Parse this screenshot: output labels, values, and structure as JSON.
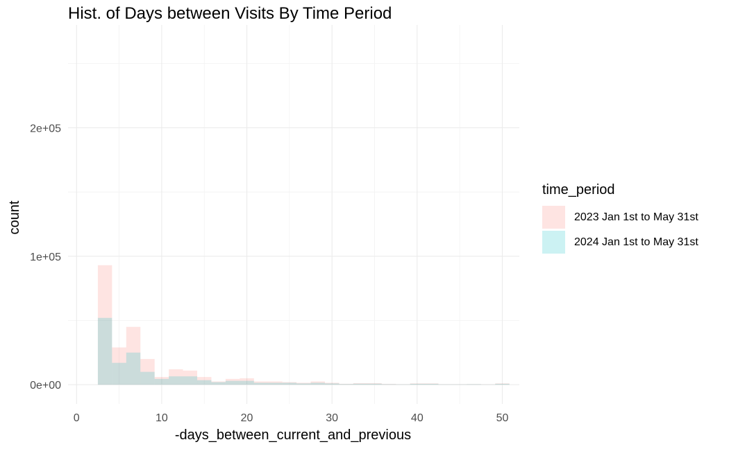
{
  "chart_data": {
    "type": "histogram",
    "title": "Hist. of Days between Visits By Time Period",
    "xlabel": "-days_between_current_and_previous",
    "ylabel": "count",
    "xlim": [
      -1,
      52
    ],
    "ylim": [
      -15000,
      280000
    ],
    "x_ticks": [
      0,
      10,
      20,
      30,
      40,
      50
    ],
    "x_tick_labels": [
      "0",
      "10",
      "20",
      "30",
      "40",
      "50"
    ],
    "y_ticks": [
      0,
      100000,
      200000
    ],
    "y_tick_labels": [
      "0e+00",
      "1e+05",
      "2e+05"
    ],
    "grid": true,
    "legend_title": "time_period",
    "legend_position": "right",
    "bin_width": 1.667,
    "bins": [
      2.5,
      4.167,
      5.833,
      7.5,
      9.167,
      10.833,
      12.5,
      14.167,
      15.833,
      17.5,
      19.167,
      20.833,
      22.5,
      24.167,
      25.833,
      27.5,
      29.167,
      30.833,
      32.5,
      34.167,
      35.833,
      37.5,
      39.167,
      40.833,
      42.5,
      44.167,
      45.833,
      47.5,
      49.167
    ],
    "series": [
      {
        "name": "2023 Jan 1st to May 31st",
        "color": "#F8766D",
        "values": [
          93000,
          29000,
          45000,
          20000,
          6000,
          12000,
          11000,
          6000,
          2500,
          4500,
          5000,
          2500,
          2500,
          2000,
          1500,
          2500,
          1500,
          700,
          1200,
          1200,
          600,
          400,
          1000,
          1000,
          400,
          400,
          500,
          300,
          1000
        ]
      },
      {
        "name": "2024 Jan 1st to May 31st",
        "color": "#00BFC4",
        "values": [
          52000,
          17000,
          25000,
          10000,
          4500,
          6500,
          6500,
          3500,
          2000,
          3000,
          3000,
          1500,
          1500,
          1500,
          1000,
          1500,
          1000,
          500,
          800,
          800,
          400,
          300,
          700,
          700,
          300,
          300,
          400,
          200,
          700
        ]
      }
    ]
  }
}
